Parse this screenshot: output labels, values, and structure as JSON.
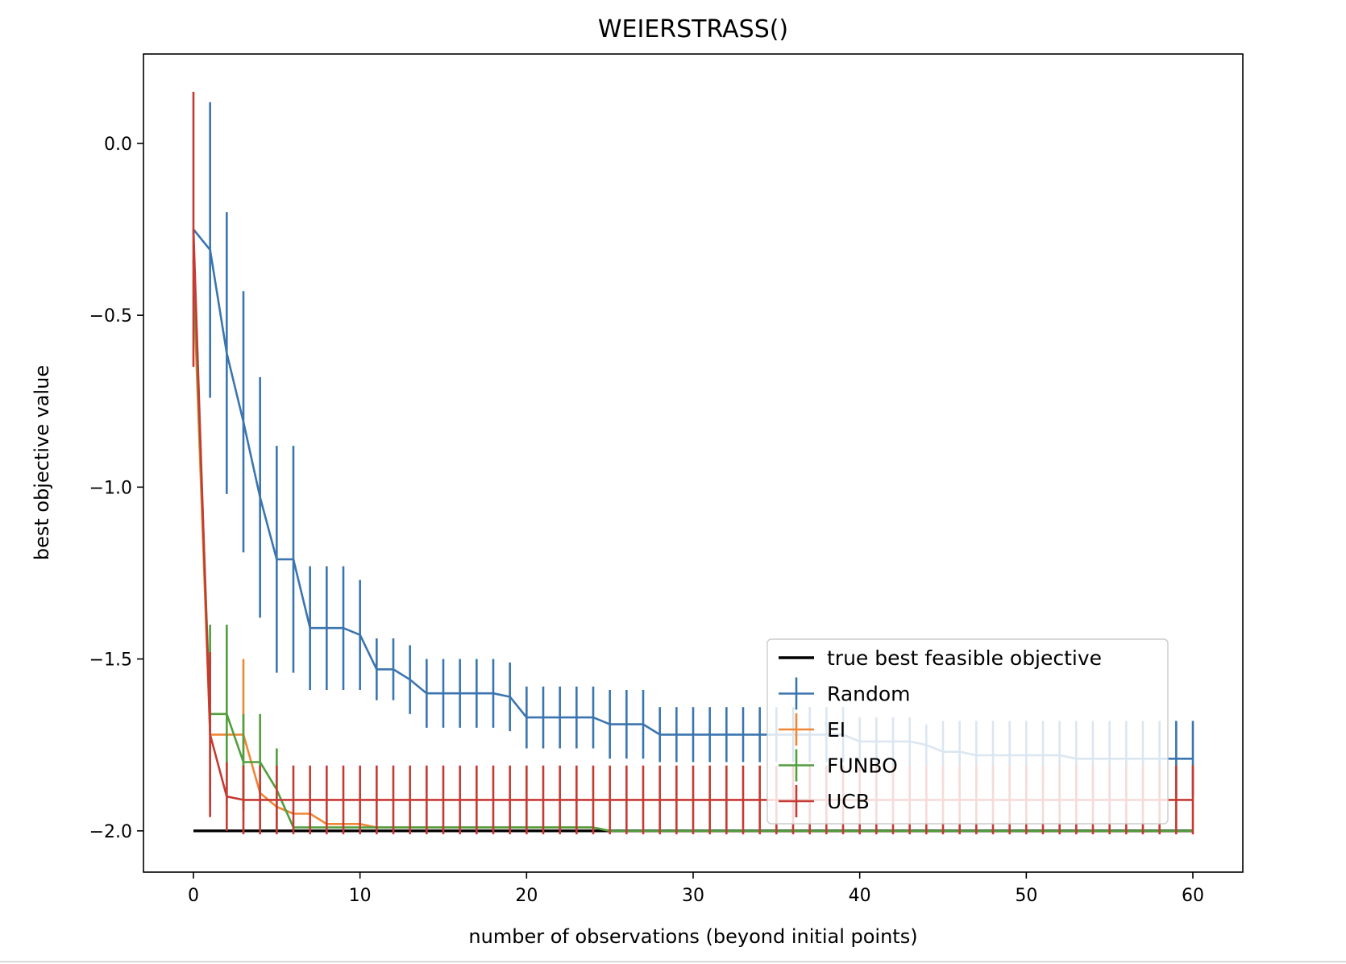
{
  "chart_data": {
    "type": "line",
    "title": "WEIERSTRASS()",
    "xlabel": "number of observations (beyond initial points)",
    "ylabel": "best objective value",
    "xlim": [
      -3,
      63
    ],
    "ylim": [
      -2.12,
      0.26
    ],
    "xticks": [
      0,
      10,
      20,
      30,
      40,
      50,
      60
    ],
    "xtick_labels": [
      "0",
      "10",
      "20",
      "30",
      "40",
      "50",
      "60"
    ],
    "yticks": [
      0.0,
      -0.5,
      -1.0,
      -1.5,
      -2.0
    ],
    "ytick_labels": [
      "0.0",
      "−0.5",
      "−1.0",
      "−1.5",
      "−2.0"
    ],
    "grid": false,
    "legend_position": "lower-right",
    "reference_line": {
      "name": "true best feasible objective",
      "y": -2.0,
      "x_range": [
        0,
        60
      ],
      "color": "#000000"
    },
    "series": [
      {
        "name": "Random",
        "color": "#3b75af",
        "x": [
          0,
          1,
          2,
          3,
          4,
          5,
          6,
          7,
          8,
          9,
          10,
          11,
          12,
          13,
          14,
          15,
          16,
          17,
          18,
          19,
          20,
          21,
          22,
          23,
          24,
          25,
          26,
          27,
          28,
          29,
          30,
          31,
          32,
          33,
          34,
          35,
          36,
          37,
          38,
          39,
          40,
          41,
          42,
          43,
          44,
          45,
          46,
          47,
          48,
          49,
          50,
          51,
          52,
          53,
          54,
          55,
          56,
          57,
          58,
          59,
          60
        ],
        "y": [
          -0.25,
          -0.31,
          -0.61,
          -0.81,
          -1.03,
          -1.21,
          -1.21,
          -1.41,
          -1.41,
          -1.41,
          -1.43,
          -1.53,
          -1.53,
          -1.56,
          -1.6,
          -1.6,
          -1.6,
          -1.6,
          -1.6,
          -1.61,
          -1.67,
          -1.67,
          -1.67,
          -1.67,
          -1.67,
          -1.69,
          -1.69,
          -1.69,
          -1.72,
          -1.72,
          -1.72,
          -1.72,
          -1.72,
          -1.72,
          -1.72,
          -1.72,
          -1.72,
          -1.72,
          -1.72,
          -1.72,
          -1.74,
          -1.74,
          -1.74,
          -1.74,
          -1.75,
          -1.77,
          -1.77,
          -1.78,
          -1.78,
          -1.78,
          -1.78,
          -1.78,
          -1.78,
          -1.79,
          -1.79,
          -1.79,
          -1.79,
          -1.79,
          -1.79,
          -1.79,
          -1.79
        ],
        "err": [
          0.0,
          0.43,
          0.41,
          0.38,
          0.35,
          0.33,
          0.33,
          0.18,
          0.18,
          0.18,
          0.16,
          0.09,
          0.09,
          0.1,
          0.1,
          0.1,
          0.1,
          0.1,
          0.1,
          0.1,
          0.09,
          0.09,
          0.09,
          0.09,
          0.09,
          0.1,
          0.1,
          0.1,
          0.08,
          0.08,
          0.08,
          0.08,
          0.08,
          0.08,
          0.08,
          0.08,
          0.08,
          0.08,
          0.08,
          0.08,
          0.07,
          0.07,
          0.07,
          0.07,
          0.06,
          0.09,
          0.09,
          0.1,
          0.1,
          0.1,
          0.1,
          0.1,
          0.1,
          0.11,
          0.11,
          0.11,
          0.11,
          0.11,
          0.11,
          0.11,
          0.11
        ]
      },
      {
        "name": "EI",
        "color": "#ef8636",
        "x": [
          0,
          1,
          2,
          3,
          4,
          5,
          6,
          7,
          8,
          9,
          10,
          11,
          12,
          13,
          14,
          15,
          16,
          17,
          18,
          19,
          20,
          21,
          22,
          23,
          24,
          25,
          26,
          27,
          28,
          29,
          30,
          31,
          32,
          33,
          34,
          35,
          36,
          37,
          38,
          39,
          40,
          41,
          42,
          43,
          44,
          45,
          46,
          47,
          48,
          49,
          50,
          51,
          52,
          53,
          54,
          55,
          56,
          57,
          58,
          59,
          60
        ],
        "y": [
          -0.4,
          -1.72,
          -1.72,
          -1.72,
          -1.89,
          -1.93,
          -1.95,
          -1.95,
          -1.98,
          -1.98,
          -1.98,
          -1.99,
          -1.99,
          -1.99,
          -1.99,
          -1.99,
          -1.99,
          -1.99,
          -1.99,
          -1.99,
          -1.99,
          -1.99,
          -1.99,
          -1.99,
          -1.99,
          -2.0,
          -2.0,
          -2.0,
          -2.0,
          -2.0,
          -2.0,
          -2.0,
          -2.0,
          -2.0,
          -2.0,
          -2.0,
          -2.0,
          -2.0,
          -2.0,
          -2.0,
          -2.0,
          -2.0,
          -2.0,
          -2.0,
          -2.0,
          -2.0,
          -2.0,
          -2.0,
          -2.0,
          -2.0,
          -2.0,
          -2.0,
          -2.0,
          -2.0,
          -2.0,
          -2.0,
          -2.0,
          -2.0,
          -2.0,
          -2.0,
          -2.0
        ],
        "err": [
          0.0,
          0.0,
          0.0,
          0.22,
          0.0,
          0.0,
          0.0,
          0.0,
          0.0,
          0.0,
          0.0,
          0.0,
          0.0,
          0.0,
          0.0,
          0.0,
          0.0,
          0.0,
          0.0,
          0.0,
          0.0,
          0.0,
          0.0,
          0.0,
          0.0,
          0.0,
          0.0,
          0.0,
          0.0,
          0.0,
          0.0,
          0.0,
          0.0,
          0.0,
          0.0,
          0.0,
          0.0,
          0.0,
          0.0,
          0.0,
          0.0,
          0.0,
          0.0,
          0.0,
          0.0,
          0.0,
          0.0,
          0.0,
          0.0,
          0.0,
          0.0,
          0.0,
          0.0,
          0.0,
          0.0,
          0.0,
          0.0,
          0.0,
          0.0,
          0.0,
          0.0
        ]
      },
      {
        "name": "FUNBO",
        "color": "#519e3e",
        "x": [
          0,
          1,
          2,
          3,
          4,
          5,
          6,
          7,
          8,
          9,
          10,
          11,
          12,
          13,
          14,
          15,
          16,
          17,
          18,
          19,
          20,
          21,
          22,
          23,
          24,
          25,
          26,
          27,
          28,
          29,
          30,
          31,
          32,
          33,
          34,
          35,
          36,
          37,
          38,
          39,
          40,
          41,
          42,
          43,
          44,
          45,
          46,
          47,
          48,
          49,
          50,
          51,
          52,
          53,
          54,
          55,
          56,
          57,
          58,
          59,
          60
        ],
        "y": [
          -0.34,
          -1.66,
          -1.66,
          -1.8,
          -1.8,
          -1.88,
          -1.99,
          -1.99,
          -1.99,
          -1.99,
          -1.99,
          -1.99,
          -1.99,
          -1.99,
          -1.99,
          -1.99,
          -1.99,
          -1.99,
          -1.99,
          -1.99,
          -1.99,
          -1.99,
          -1.99,
          -1.99,
          -1.99,
          -2.0,
          -2.0,
          -2.0,
          -2.0,
          -2.0,
          -2.0,
          -2.0,
          -2.0,
          -2.0,
          -2.0,
          -2.0,
          -2.0,
          -2.0,
          -2.0,
          -2.0,
          -2.0,
          -2.0,
          -2.0,
          -2.0,
          -2.0,
          -2.0,
          -2.0,
          -2.0,
          -2.0,
          -2.0,
          -2.0,
          -2.0,
          -2.0,
          -2.0,
          -2.0,
          -2.0,
          -2.0,
          -2.0,
          -2.0,
          -2.0,
          -2.0
        ],
        "err": [
          0.0,
          0.26,
          0.26,
          0.14,
          0.14,
          0.12,
          0.0,
          0.0,
          0.0,
          0.0,
          0.0,
          0.0,
          0.0,
          0.0,
          0.0,
          0.0,
          0.0,
          0.0,
          0.0,
          0.0,
          0.0,
          0.0,
          0.0,
          0.0,
          0.0,
          0.0,
          0.0,
          0.0,
          0.0,
          0.0,
          0.0,
          0.0,
          0.0,
          0.0,
          0.0,
          0.0,
          0.0,
          0.0,
          0.0,
          0.0,
          0.0,
          0.0,
          0.0,
          0.0,
          0.0,
          0.0,
          0.0,
          0.0,
          0.0,
          0.0,
          0.0,
          0.0,
          0.0,
          0.0,
          0.0,
          0.0,
          0.0,
          0.0,
          0.0,
          0.0,
          0.0
        ]
      },
      {
        "name": "UCB",
        "color": "#c53a32",
        "x": [
          0,
          1,
          2,
          3,
          4,
          5,
          6,
          7,
          8,
          9,
          10,
          11,
          12,
          13,
          14,
          15,
          16,
          17,
          18,
          19,
          20,
          21,
          22,
          23,
          24,
          25,
          26,
          27,
          28,
          29,
          30,
          31,
          32,
          33,
          34,
          35,
          36,
          37,
          38,
          39,
          40,
          41,
          42,
          43,
          44,
          45,
          46,
          47,
          48,
          49,
          50,
          51,
          52,
          53,
          54,
          55,
          56,
          57,
          58,
          59,
          60
        ],
        "y": [
          -0.25,
          -1.72,
          -1.9,
          -1.91,
          -1.91,
          -1.91,
          -1.91,
          -1.91,
          -1.91,
          -1.91,
          -1.91,
          -1.91,
          -1.91,
          -1.91,
          -1.91,
          -1.91,
          -1.91,
          -1.91,
          -1.91,
          -1.91,
          -1.91,
          -1.91,
          -1.91,
          -1.91,
          -1.91,
          -1.91,
          -1.91,
          -1.91,
          -1.91,
          -1.91,
          -1.91,
          -1.91,
          -1.91,
          -1.91,
          -1.91,
          -1.91,
          -1.91,
          -1.91,
          -1.91,
          -1.91,
          -1.91,
          -1.91,
          -1.91,
          -1.91,
          -1.91,
          -1.91,
          -1.91,
          -1.91,
          -1.91,
          -1.91,
          -1.91,
          -1.91,
          -1.91,
          -1.91,
          -1.91,
          -1.91,
          -1.91,
          -1.91,
          -1.91,
          -1.91,
          -1.91
        ],
        "err": [
          0.4,
          0.24,
          0.1,
          0.1,
          0.1,
          0.1,
          0.1,
          0.1,
          0.1,
          0.1,
          0.1,
          0.1,
          0.1,
          0.1,
          0.1,
          0.1,
          0.1,
          0.1,
          0.1,
          0.1,
          0.1,
          0.1,
          0.1,
          0.1,
          0.1,
          0.1,
          0.1,
          0.1,
          0.1,
          0.1,
          0.1,
          0.1,
          0.1,
          0.1,
          0.1,
          0.1,
          0.1,
          0.1,
          0.1,
          0.1,
          0.1,
          0.1,
          0.1,
          0.1,
          0.1,
          0.1,
          0.1,
          0.1,
          0.1,
          0.1,
          0.1,
          0.1,
          0.1,
          0.1,
          0.1,
          0.1,
          0.1,
          0.1,
          0.1,
          0.1,
          0.1
        ]
      }
    ],
    "legend": [
      "true best feasible objective",
      "Random",
      "EI",
      "FUNBO",
      "UCB"
    ]
  }
}
